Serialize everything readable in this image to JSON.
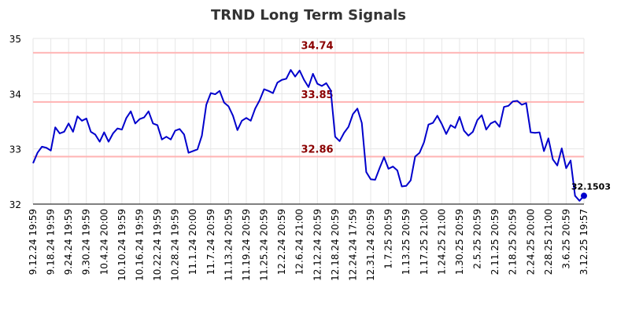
{
  "chart_data": {
    "type": "line",
    "title": "TRND Long Term Signals",
    "xlabel": "",
    "ylabel": "",
    "ylim": [
      32,
      35
    ],
    "yticks": [
      "32",
      "33",
      "34",
      "35"
    ],
    "grid": true,
    "colors": {
      "line": "#0000cc",
      "reference": "#ffb3b3",
      "reference_label": "#8b0000",
      "grid": "#e6e6e6",
      "last_point": "#0000cc"
    },
    "reference_lines": [
      {
        "value": 34.74,
        "label": "34.74"
      },
      {
        "value": 33.85,
        "label": "33.85"
      },
      {
        "value": 32.86,
        "label": "32.86"
      }
    ],
    "x_tick_labels": [
      "9.12.24 19:59",
      "9.18.24 19:59",
      "9.24.24 19:59",
      "9.30.24 19:59",
      "10.4.24 20:00",
      "10.10.24 19:59",
      "10.16.24 19:59",
      "10.22.24 19:59",
      "10.28.24 19:59",
      "11.1.24 20:00",
      "11.7.24 20:59",
      "11.13.24 20:59",
      "11.19.24 20:59",
      "11.25.24 20:59",
      "12.2.24 20:59",
      "12.6.24 21:00",
      "12.12.24 20:59",
      "12.18.24 20:59",
      "12.24.24 17:59",
      "12.31.24 20:59",
      "1.7.25 20:59",
      "1.13.25 20:59",
      "1.17.25 21:00",
      "1.24.25 21:00",
      "1.30.25 20:59",
      "2.5.25 20:59",
      "2.11.25 20:59",
      "2.18.25 20:59",
      "2.24.25 20:00",
      "2.28.25 21:00",
      "3.6.25 20:59",
      "3.12.25 19:57"
    ],
    "series": [
      {
        "values": [
          32.74,
          32.93,
          33.04,
          33.02,
          32.97,
          33.39,
          33.28,
          33.31,
          33.46,
          33.31,
          33.59,
          33.51,
          33.55,
          33.31,
          33.26,
          33.13,
          33.3,
          33.13,
          33.28,
          33.37,
          33.35,
          33.56,
          33.68,
          33.46,
          33.54,
          33.57,
          33.68,
          33.46,
          33.43,
          33.17,
          33.22,
          33.17,
          33.33,
          33.36,
          33.26,
          32.93,
          32.96,
          32.99,
          33.24,
          33.8,
          34.01,
          33.99,
          34.05,
          33.84,
          33.77,
          33.6,
          33.34,
          33.51,
          33.56,
          33.51,
          33.73,
          33.88,
          34.08,
          34.05,
          34.01,
          34.2,
          34.25,
          34.27,
          34.43,
          34.31,
          34.42,
          34.25,
          34.12,
          34.36,
          34.18,
          34.14,
          34.19,
          34.06,
          33.22,
          33.14,
          33.29,
          33.4,
          33.63,
          33.73,
          33.47,
          32.58,
          32.45,
          32.44,
          32.65,
          32.85,
          32.64,
          32.68,
          32.61,
          32.32,
          32.33,
          32.43,
          32.86,
          32.93,
          33.12,
          33.44,
          33.47,
          33.6,
          33.45,
          33.27,
          33.43,
          33.38,
          33.58,
          33.33,
          33.24,
          33.31,
          33.52,
          33.61,
          33.35,
          33.46,
          33.5,
          33.4,
          33.76,
          33.78,
          33.86,
          33.87,
          33.8,
          33.83,
          33.3,
          33.29,
          33.3,
          32.96,
          33.19,
          32.81,
          32.7,
          33.01,
          32.65,
          32.79,
          32.15,
          32.06,
          32.1503
        ],
        "last_label": "32.1503"
      }
    ]
  }
}
